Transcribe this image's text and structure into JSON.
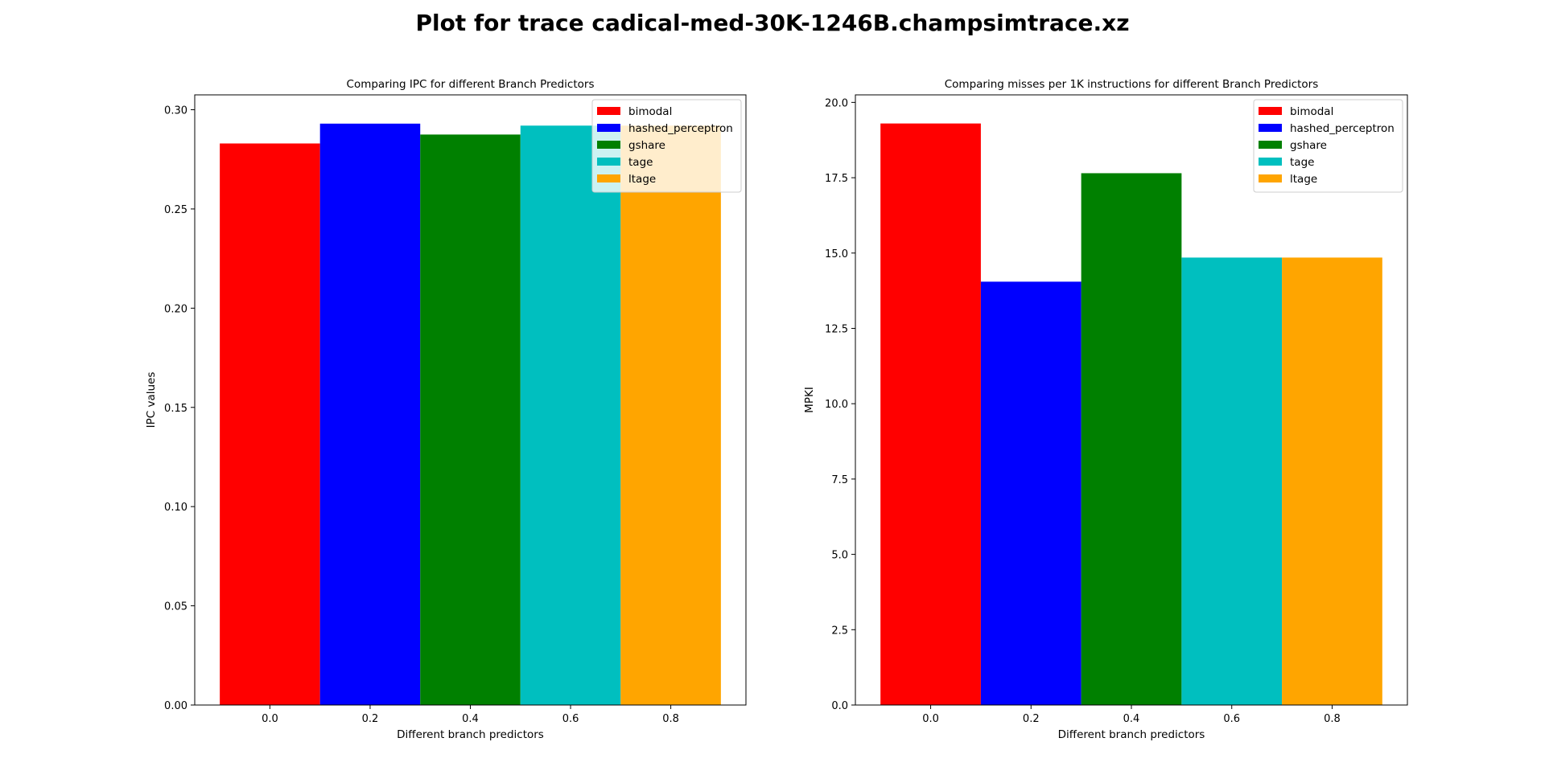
{
  "figure": {
    "suptitle": "Plot for trace cadical-med-30K-1246B.champsimtrace.xz"
  },
  "chart_data": [
    {
      "type": "bar",
      "title": "Comparing IPC for different Branch Predictors",
      "xlabel": "Different branch predictors",
      "ylabel": "IPC values",
      "xlim": [
        -0.15,
        0.95
      ],
      "ylim": [
        0,
        0.3075
      ],
      "xticks": [
        "0.0",
        "0.2",
        "0.4",
        "0.6",
        "0.8"
      ],
      "xtick_values": [
        0.0,
        0.2,
        0.4,
        0.6,
        0.8
      ],
      "yticks": [
        "0.00",
        "0.05",
        "0.10",
        "0.15",
        "0.20",
        "0.25",
        "0.30"
      ],
      "ytick_values": [
        0.0,
        0.05,
        0.1,
        0.15,
        0.2,
        0.25,
        0.3
      ],
      "bar_width": 0.2,
      "legend_position": "top-right",
      "grid": false,
      "series": [
        {
          "name": "bimodal",
          "x": 0.0,
          "value": 0.283,
          "color": "#ff0000"
        },
        {
          "name": "hashed_perceptron",
          "x": 0.2,
          "value": 0.293,
          "color": "#0000ff"
        },
        {
          "name": "gshare",
          "x": 0.4,
          "value": 0.2875,
          "color": "#008000"
        },
        {
          "name": "tage",
          "x": 0.6,
          "value": 0.292,
          "color": "#00bfbf"
        },
        {
          "name": "ltage",
          "x": 0.8,
          "value": 0.292,
          "color": "#ffa500"
        }
      ]
    },
    {
      "type": "bar",
      "title": "Comparing misses per 1K instructions for different Branch Predictors",
      "xlabel": "Different branch predictors",
      "ylabel": "MPKI",
      "xlim": [
        -0.15,
        0.95
      ],
      "ylim": [
        0,
        20.25
      ],
      "xticks": [
        "0.0",
        "0.2",
        "0.4",
        "0.6",
        "0.8"
      ],
      "xtick_values": [
        0.0,
        0.2,
        0.4,
        0.6,
        0.8
      ],
      "yticks": [
        "0.0",
        "2.5",
        "5.0",
        "7.5",
        "10.0",
        "12.5",
        "15.0",
        "17.5",
        "20.0"
      ],
      "ytick_values": [
        0.0,
        2.5,
        5.0,
        7.5,
        10.0,
        12.5,
        15.0,
        17.5,
        20.0
      ],
      "bar_width": 0.2,
      "legend_position": "top-right",
      "grid": false,
      "series": [
        {
          "name": "bimodal",
          "x": 0.0,
          "value": 19.3,
          "color": "#ff0000"
        },
        {
          "name": "hashed_perceptron",
          "x": 0.2,
          "value": 14.05,
          "color": "#0000ff"
        },
        {
          "name": "gshare",
          "x": 0.4,
          "value": 17.65,
          "color": "#008000"
        },
        {
          "name": "tage",
          "x": 0.6,
          "value": 14.85,
          "color": "#00bfbf"
        },
        {
          "name": "ltage",
          "x": 0.8,
          "value": 14.85,
          "color": "#ffa500"
        }
      ]
    }
  ]
}
